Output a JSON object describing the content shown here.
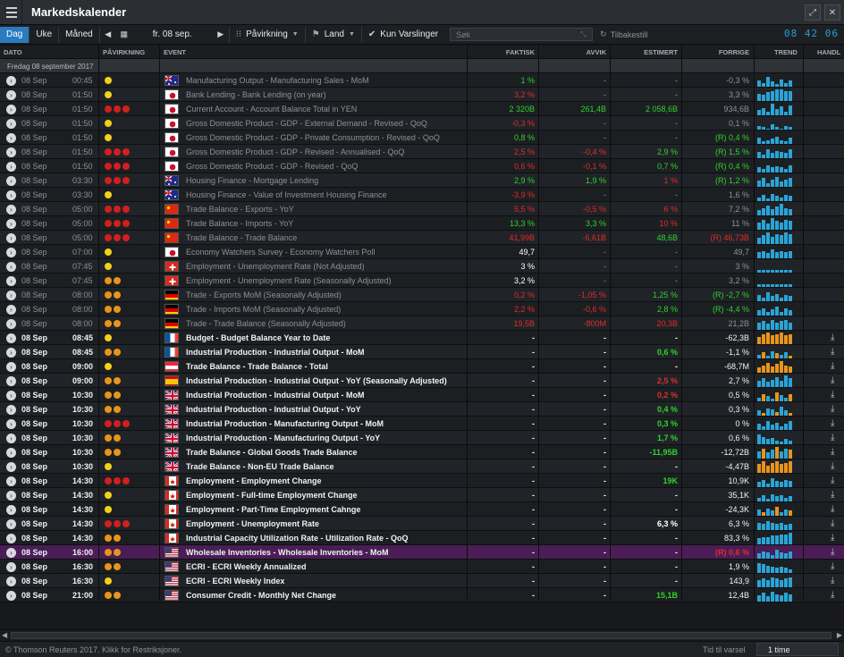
{
  "app": {
    "title": "Markedskalender"
  },
  "toolbar": {
    "views": [
      "Dag",
      "Uke",
      "Måned"
    ],
    "active_view": "Dag",
    "date": "fr. 08 sep.",
    "impact_label": "Påvirkning",
    "country_label": "Land",
    "alerts_only": "Kun Varslinger",
    "search_placeholder": "Søk",
    "reset": "Tilbakestill",
    "clock": "08 42 06"
  },
  "columns": {
    "date": "DATO",
    "impact": "PÅVIRKNING",
    "event": "EVENT",
    "actual": "FAKTISK",
    "deviation": "AVVIK",
    "estimated": "ESTIMERT",
    "previous": "FORRIGE",
    "trend": "TREND",
    "trade": "HANDL"
  },
  "group": {
    "label": "Fredag 08 september 2017"
  },
  "colors": {
    "high": "#d11f1f",
    "medium": "#e8941b",
    "low": "#f0d21c",
    "positive": "#2fd12f",
    "negative": "#e12c2c",
    "accent": "#2a7bbf",
    "trend": "#2aa4d6",
    "trend_alt": "#e8941b",
    "highlight": "#4a1d56"
  },
  "rows": [
    {
      "date": "08 Sep",
      "time": "00:45",
      "impact": "low",
      "flag": "au",
      "event": "Manufacturing Output - Manufacturing Sales - MoM",
      "actual": "1 %",
      "actual_c": "g",
      "dev": "-",
      "est": "-",
      "prev": "-0,3 %",
      "state": "past",
      "trend": "b",
      "trend_vals": [
        0.5,
        0.3,
        0.8,
        0.4,
        0.2,
        0.6,
        0.3,
        0.5
      ]
    },
    {
      "date": "08 Sep",
      "time": "01:50",
      "impact": "low",
      "flag": "jp",
      "event": "Bank Lending - Bank Lending (on year)",
      "actual": "3,2 %",
      "actual_c": "r",
      "dev": "-",
      "est": "-",
      "prev": "3,3 %",
      "state": "past",
      "trend": "b",
      "trend_vals": [
        0.6,
        0.5,
        0.7,
        0.8,
        0.9,
        0.9,
        0.8,
        0.8
      ]
    },
    {
      "date": "08 Sep",
      "time": "01:50",
      "impact": "high",
      "flag": "jp",
      "event": "Current Account - Account Balance Total in YEN",
      "actual": "2 320B",
      "actual_c": "g",
      "dev": "261,4B",
      "dev_c": "g",
      "est": "2 058,6B",
      "est_c": "g",
      "prev": "934,6B",
      "state": "past",
      "trend": "b",
      "trend_vals": [
        0.4,
        0.6,
        0.3,
        0.9,
        0.5,
        0.7,
        0.3,
        0.8
      ]
    },
    {
      "date": "08 Sep",
      "time": "01:50",
      "impact": "low",
      "flag": "jp",
      "event": "Gross Domestic Product - GDP - External Demand - Revised - QoQ",
      "actual": "-0,3 %",
      "actual_c": "r",
      "dev": "-",
      "est": "-",
      "prev": "0,1 %",
      "state": "past",
      "trend": "b",
      "trend_vals": [
        0.3,
        0.2,
        0.1,
        0.4,
        0.2,
        0.1,
        0.3,
        0.2
      ]
    },
    {
      "date": "08 Sep",
      "time": "01:50",
      "impact": "low",
      "flag": "jp",
      "event": "Gross Domestic Product - GDP - Private Consumption - Revised - QoQ",
      "actual": "0,8 %",
      "actual_c": "g",
      "dev": "-",
      "est": "-",
      "prev": "(R) 0,4 %",
      "prev_c": "g",
      "state": "past",
      "trend": "b",
      "trend_vals": [
        0.5,
        0.2,
        0.3,
        0.4,
        0.6,
        0.3,
        0.2,
        0.5
      ]
    },
    {
      "date": "08 Sep",
      "time": "01:50",
      "impact": "high",
      "flag": "jp",
      "event": "Gross Domestic Product - GDP - Revised - Annualised - QoQ",
      "actual": "2,5 %",
      "actual_c": "r",
      "dev": "-0,4 %",
      "dev_c": "r",
      "est": "2,9 %",
      "est_c": "g",
      "prev": "(R) 1,5 %",
      "prev_c": "g",
      "state": "past",
      "trend": "b",
      "trend_vals": [
        0.5,
        0.3,
        0.7,
        0.4,
        0.6,
        0.5,
        0.4,
        0.7
      ]
    },
    {
      "date": "08 Sep",
      "time": "01:50",
      "impact": "high",
      "flag": "jp",
      "event": "Gross Domestic Product - GDP - Revised - QoQ",
      "actual": "0,6 %",
      "actual_c": "r",
      "dev": "-0,1 %",
      "dev_c": "r",
      "est": "0,7 %",
      "est_c": "g",
      "prev": "(R) 0,4 %",
      "prev_c": "g",
      "state": "past",
      "trend": "b",
      "trend_vals": [
        0.4,
        0.3,
        0.6,
        0.4,
        0.5,
        0.4,
        0.3,
        0.6
      ]
    },
    {
      "date": "08 Sep",
      "time": "03:30",
      "impact": "high",
      "flag": "au",
      "event": "Housing Finance - Mortgage Lending",
      "actual": "2,9 %",
      "actual_c": "g",
      "dev": "1,9 %",
      "dev_c": "g",
      "est": "1 %",
      "est_c": "r",
      "prev": "(R) 1,2 %",
      "prev_c": "g",
      "state": "past",
      "trend": "b",
      "trend_vals": [
        0.5,
        0.7,
        0.3,
        0.6,
        0.8,
        0.4,
        0.6,
        0.7
      ]
    },
    {
      "date": "08 Sep",
      "time": "03:30",
      "impact": "low",
      "flag": "au",
      "event": "Housing Finance - Value of Investment Housing Finance",
      "actual": "-3,9 %",
      "actual_c": "r",
      "dev": "-",
      "est": "-",
      "prev": "1,6 %",
      "state": "past",
      "trend": "b",
      "trend_vals": [
        0.3,
        0.5,
        0.2,
        0.6,
        0.4,
        0.3,
        0.5,
        0.4
      ]
    },
    {
      "date": "08 Sep",
      "time": "05:00",
      "impact": "high",
      "flag": "cn",
      "event": "Trade Balance - Exports - YoY",
      "actual": "5,5 %",
      "actual_c": "r",
      "dev": "-0,5 %",
      "dev_c": "r",
      "est": "6 %",
      "est_c": "r",
      "prev": "7,2 %",
      "state": "past",
      "trend": "b",
      "trend_vals": [
        0.4,
        0.6,
        0.8,
        0.5,
        0.7,
        0.9,
        0.6,
        0.5
      ]
    },
    {
      "date": "08 Sep",
      "time": "05:00",
      "impact": "high",
      "flag": "cn",
      "event": "Trade Balance - Imports - YoY",
      "actual": "13,3 %",
      "actual_c": "g",
      "dev": "3,3 %",
      "dev_c": "g",
      "est": "10 %",
      "est_c": "r",
      "prev": "11 %",
      "state": "past",
      "trend": "b",
      "trend_vals": [
        0.6,
        0.8,
        0.5,
        0.9,
        0.7,
        0.6,
        0.8,
        0.7
      ]
    },
    {
      "date": "08 Sep",
      "time": "05:00",
      "impact": "high",
      "flag": "cn",
      "event": "Trade Balance - Trade Balance",
      "actual": "41,99B",
      "actual_c": "r",
      "dev": "-6,61B",
      "dev_c": "r",
      "est": "48,6B",
      "est_c": "g",
      "prev": "(R) 46,73B",
      "prev_c": "r",
      "state": "past",
      "trend": "b",
      "trend_vals": [
        0.5,
        0.7,
        0.9,
        0.6,
        0.8,
        0.7,
        0.9,
        0.8
      ]
    },
    {
      "date": "08 Sep",
      "time": "07:00",
      "impact": "low",
      "flag": "jp",
      "event": "Economy Watchers Survey - Economy Watchers Poll",
      "actual": "49,7",
      "actual_c": "w",
      "dev": "-",
      "est": "-",
      "prev": "49,7",
      "state": "past",
      "trend": "b",
      "trend_vals": [
        0.5,
        0.6,
        0.4,
        0.7,
        0.5,
        0.6,
        0.5,
        0.6
      ]
    },
    {
      "date": "08 Sep",
      "time": "07:45",
      "impact": "low",
      "flag": "ch",
      "event": "Employment - Unemployment Rate (Not Adjusted)",
      "actual": "3 %",
      "actual_c": "w",
      "dev": "-",
      "est": "-",
      "prev": "3 %",
      "state": "past",
      "trend": "b",
      "trend_vals": [
        0.2,
        0.2,
        0.2,
        0.2,
        0.2,
        0.2,
        0.2,
        0.2
      ]
    },
    {
      "date": "08 Sep",
      "time": "07:45",
      "impact": "medium",
      "flag": "ch",
      "event": "Employment - Unemployment Rate (Seasonally Adjusted)",
      "actual": "3,2 %",
      "actual_c": "w",
      "dev": "-",
      "est": "-",
      "prev": "3,2 %",
      "state": "past",
      "trend": "b",
      "trend_vals": [
        0.2,
        0.2,
        0.2,
        0.2,
        0.2,
        0.2,
        0.2,
        0.2
      ]
    },
    {
      "date": "08 Sep",
      "time": "08:00",
      "impact": "medium",
      "flag": "de",
      "event": "Trade - Exports MoM (Seasonally Adjusted)",
      "actual": "0,2 %",
      "actual_c": "r",
      "dev": "-1,05 %",
      "dev_c": "r",
      "est": "1,25 %",
      "est_c": "g",
      "prev": "(R) -2,7 %",
      "prev_c": "g",
      "state": "past",
      "trend": "b",
      "trend_vals": [
        0.5,
        0.3,
        0.7,
        0.4,
        0.6,
        0.3,
        0.5,
        0.4
      ]
    },
    {
      "date": "08 Sep",
      "time": "08:00",
      "impact": "medium",
      "flag": "de",
      "event": "Trade - Imports MoM (Seasonally Adjusted)",
      "actual": "2,2 %",
      "actual_c": "r",
      "dev": "-0,6 %",
      "dev_c": "r",
      "est": "2,8 %",
      "est_c": "g",
      "prev": "(R) -4,4 %",
      "prev_c": "g",
      "state": "past",
      "trend": "b",
      "trend_vals": [
        0.4,
        0.6,
        0.3,
        0.5,
        0.7,
        0.3,
        0.6,
        0.4
      ]
    },
    {
      "date": "08 Sep",
      "time": "08:00",
      "impact": "medium",
      "flag": "de",
      "event": "Trade - Trade Balance (Seasonally Adjusted)",
      "actual": "19,5B",
      "actual_c": "r",
      "dev": "-800M",
      "dev_c": "r",
      "est": "20,3B",
      "est_c": "r",
      "prev": "21,2B",
      "state": "past",
      "trend": "b",
      "trend_vals": [
        0.6,
        0.7,
        0.5,
        0.8,
        0.6,
        0.7,
        0.8,
        0.6
      ]
    },
    {
      "date": "08 Sep",
      "time": "08:45",
      "impact": "low",
      "flag": "fr",
      "event": "Budget - Budget Balance Year to Date",
      "actual": "-",
      "dev": "-",
      "est": "-",
      "prev": "-62,3B",
      "state": "future",
      "trend": "o",
      "trend_vals": [
        0.6,
        0.8,
        0.9,
        0.7,
        0.8,
        0.9,
        0.7,
        0.8
      ]
    },
    {
      "date": "08 Sep",
      "time": "08:45",
      "impact": "medium",
      "flag": "fr",
      "event": "Industrial Production - Industrial Output - MoM",
      "actual": "-",
      "dev": "-",
      "est": "0,6 %",
      "est_c": "g",
      "prev": "-1,1 %",
      "state": "future",
      "trend": "m",
      "trend_vals": [
        0.3,
        0.5,
        0.2,
        0.6,
        0.4,
        0.3,
        0.5,
        0.2
      ]
    },
    {
      "date": "08 Sep",
      "time": "09:00",
      "impact": "low",
      "flag": "at",
      "event": "Trade Balance - Trade Balance - Total",
      "actual": "-",
      "dev": "-",
      "est": "-",
      "prev": "-68,7M",
      "state": "future",
      "trend": "o",
      "trend_vals": [
        0.4,
        0.6,
        0.8,
        0.5,
        0.7,
        0.9,
        0.6,
        0.5
      ]
    },
    {
      "date": "08 Sep",
      "time": "09:00",
      "impact": "medium",
      "flag": "es",
      "event": "Industrial Production - Industrial Output - YoY (Seasonally Adjusted)",
      "actual": "-",
      "dev": "-",
      "est": "2,5 %",
      "est_c": "r",
      "prev": "2,7 %",
      "state": "future",
      "trend": "b",
      "trend_vals": [
        0.5,
        0.7,
        0.4,
        0.6,
        0.8,
        0.5,
        0.9,
        0.7
      ]
    },
    {
      "date": "08 Sep",
      "time": "10:30",
      "impact": "medium",
      "flag": "gb",
      "event": "Industrial Production - Industrial Output - MoM",
      "actual": "-",
      "dev": "-",
      "est": "0,2 %",
      "est_c": "r",
      "prev": "0,5 %",
      "state": "future",
      "trend": "m",
      "trend_vals": [
        0.3,
        0.6,
        0.4,
        0.2,
        0.7,
        0.5,
        0.3,
        0.6
      ]
    },
    {
      "date": "08 Sep",
      "time": "10:30",
      "impact": "medium",
      "flag": "gb",
      "event": "Industrial Production - Industrial Output - YoY",
      "actual": "-",
      "dev": "-",
      "est": "0,4 %",
      "est_c": "g",
      "prev": "0,3 %",
      "state": "future",
      "trend": "m",
      "trend_vals": [
        0.4,
        0.2,
        0.6,
        0.5,
        0.3,
        0.7,
        0.4,
        0.2
      ]
    },
    {
      "date": "08 Sep",
      "time": "10:30",
      "impact": "high",
      "flag": "gb",
      "event": "Industrial Production - Manufacturing Output - MoM",
      "actual": "-",
      "dev": "-",
      "est": "0,3 %",
      "est_c": "g",
      "prev": "0 %",
      "state": "future",
      "trend": "b",
      "trend_vals": [
        0.5,
        0.3,
        0.7,
        0.4,
        0.6,
        0.3,
        0.5,
        0.7
      ]
    },
    {
      "date": "08 Sep",
      "time": "10:30",
      "impact": "medium",
      "flag": "gb",
      "event": "Industrial Production - Manufacturing Output - YoY",
      "actual": "-",
      "dev": "-",
      "est": "1,7 %",
      "est_c": "g",
      "prev": "0,6 %",
      "state": "future",
      "trend": "b",
      "trend_vals": [
        0.8,
        0.6,
        0.4,
        0.5,
        0.3,
        0.2,
        0.4,
        0.3
      ]
    },
    {
      "date": "08 Sep",
      "time": "10:30",
      "impact": "medium",
      "flag": "gb",
      "event": "Trade Balance - Global Goods Trade Balance",
      "actual": "-",
      "dev": "-",
      "est": "-11,95B",
      "est_c": "g",
      "prev": "-12,72B",
      "state": "future",
      "trend": "m",
      "trend_vals": [
        0.6,
        0.8,
        0.5,
        0.7,
        0.9,
        0.6,
        0.8,
        0.7
      ]
    },
    {
      "date": "08 Sep",
      "time": "10:30",
      "impact": "low",
      "flag": "gb",
      "event": "Trade Balance - Non-EU Trade Balance",
      "actual": "-",
      "dev": "-",
      "est": "-",
      "prev": "-4,47B",
      "state": "future",
      "trend": "o",
      "trend_vals": [
        0.7,
        0.9,
        0.6,
        0.8,
        0.9,
        0.7,
        0.8,
        0.9
      ]
    },
    {
      "date": "08 Sep",
      "time": "14:30",
      "impact": "high",
      "flag": "ca",
      "event": "Employment - Employment Change",
      "actual": "-",
      "dev": "-",
      "est": "19K",
      "est_c": "g",
      "prev": "10,9K",
      "state": "future",
      "trend": "b",
      "trend_vals": [
        0.4,
        0.6,
        0.3,
        0.7,
        0.5,
        0.4,
        0.6,
        0.5
      ]
    },
    {
      "date": "08 Sep",
      "time": "14:30",
      "impact": "low",
      "flag": "ca",
      "event": "Employment - Full-time Employment Change",
      "actual": "-",
      "dev": "-",
      "est": "-",
      "prev": "35,1K",
      "state": "future",
      "trend": "b",
      "trend_vals": [
        0.3,
        0.5,
        0.2,
        0.6,
        0.4,
        0.5,
        0.3,
        0.4
      ]
    },
    {
      "date": "08 Sep",
      "time": "14:30",
      "impact": "low",
      "flag": "ca",
      "event": "Employment - Part-Time Employment Cahnge",
      "actual": "-",
      "dev": "-",
      "est": "-",
      "prev": "-24,3K",
      "state": "future",
      "trend": "m",
      "trend_vals": [
        0.5,
        0.3,
        0.6,
        0.4,
        0.7,
        0.3,
        0.5,
        0.4
      ]
    },
    {
      "date": "08 Sep",
      "time": "14:30",
      "impact": "high",
      "flag": "ca",
      "event": "Employment - Unemployment Rate",
      "actual": "-",
      "dev": "-",
      "est": "6,3 %",
      "est_c": "w",
      "prev": "6,3 %",
      "state": "future",
      "trend": "b",
      "trend_vals": [
        0.6,
        0.5,
        0.7,
        0.6,
        0.5,
        0.6,
        0.4,
        0.5
      ]
    },
    {
      "date": "08 Sep",
      "time": "14:30",
      "impact": "medium",
      "flag": "ca",
      "event": "Industrial Capacity Utilization Rate - Utilization Rate - QoQ",
      "actual": "-",
      "dev": "-",
      "est": "-",
      "prev": "83,3 %",
      "state": "future",
      "trend": "b",
      "trend_vals": [
        0.5,
        0.6,
        0.6,
        0.7,
        0.7,
        0.8,
        0.8,
        0.9
      ]
    },
    {
      "date": "08 Sep",
      "time": "16:00",
      "impact": "medium",
      "flag": "us",
      "event": "Wholesale Inventories - Wholesale Inventories - MoM",
      "actual": "-",
      "dev": "-",
      "est": "-",
      "prev": "(R) 0,6 %",
      "prev_c": "r",
      "state": "future",
      "highlight": true,
      "trend": "b",
      "trend_vals": [
        0.4,
        0.6,
        0.5,
        0.3,
        0.7,
        0.5,
        0.4,
        0.6
      ]
    },
    {
      "date": "08 Sep",
      "time": "16:30",
      "impact": "medium",
      "flag": "us",
      "event": "ECRI - ECRI Weekly Annualized",
      "actual": "-",
      "dev": "-",
      "est": "-",
      "prev": "1,9 %",
      "state": "future",
      "trend": "b",
      "trend_vals": [
        0.8,
        0.7,
        0.6,
        0.5,
        0.4,
        0.5,
        0.4,
        0.3
      ]
    },
    {
      "date": "08 Sep",
      "time": "16:30",
      "impact": "low",
      "flag": "us",
      "event": "ECRI - ECRI Weekly Index",
      "actual": "-",
      "dev": "-",
      "est": "-",
      "prev": "143,9",
      "state": "future",
      "trend": "b",
      "trend_vals": [
        0.6,
        0.7,
        0.6,
        0.8,
        0.7,
        0.6,
        0.7,
        0.8
      ]
    },
    {
      "date": "08 Sep",
      "time": "21:00",
      "impact": "medium",
      "flag": "us",
      "event": "Consumer Credit - Monthly Net Change",
      "actual": "-",
      "dev": "-",
      "est": "15,1B",
      "est_c": "g",
      "prev": "12,4B",
      "state": "future",
      "trend": "b",
      "trend_vals": [
        0.5,
        0.7,
        0.4,
        0.8,
        0.6,
        0.5,
        0.7,
        0.6
      ]
    }
  ],
  "status": {
    "copyright": "© Thomson Reuters 2017. Klikk for Restriksjoner.",
    "alert_label": "Tid til varsel",
    "alert_value": "1 time"
  }
}
